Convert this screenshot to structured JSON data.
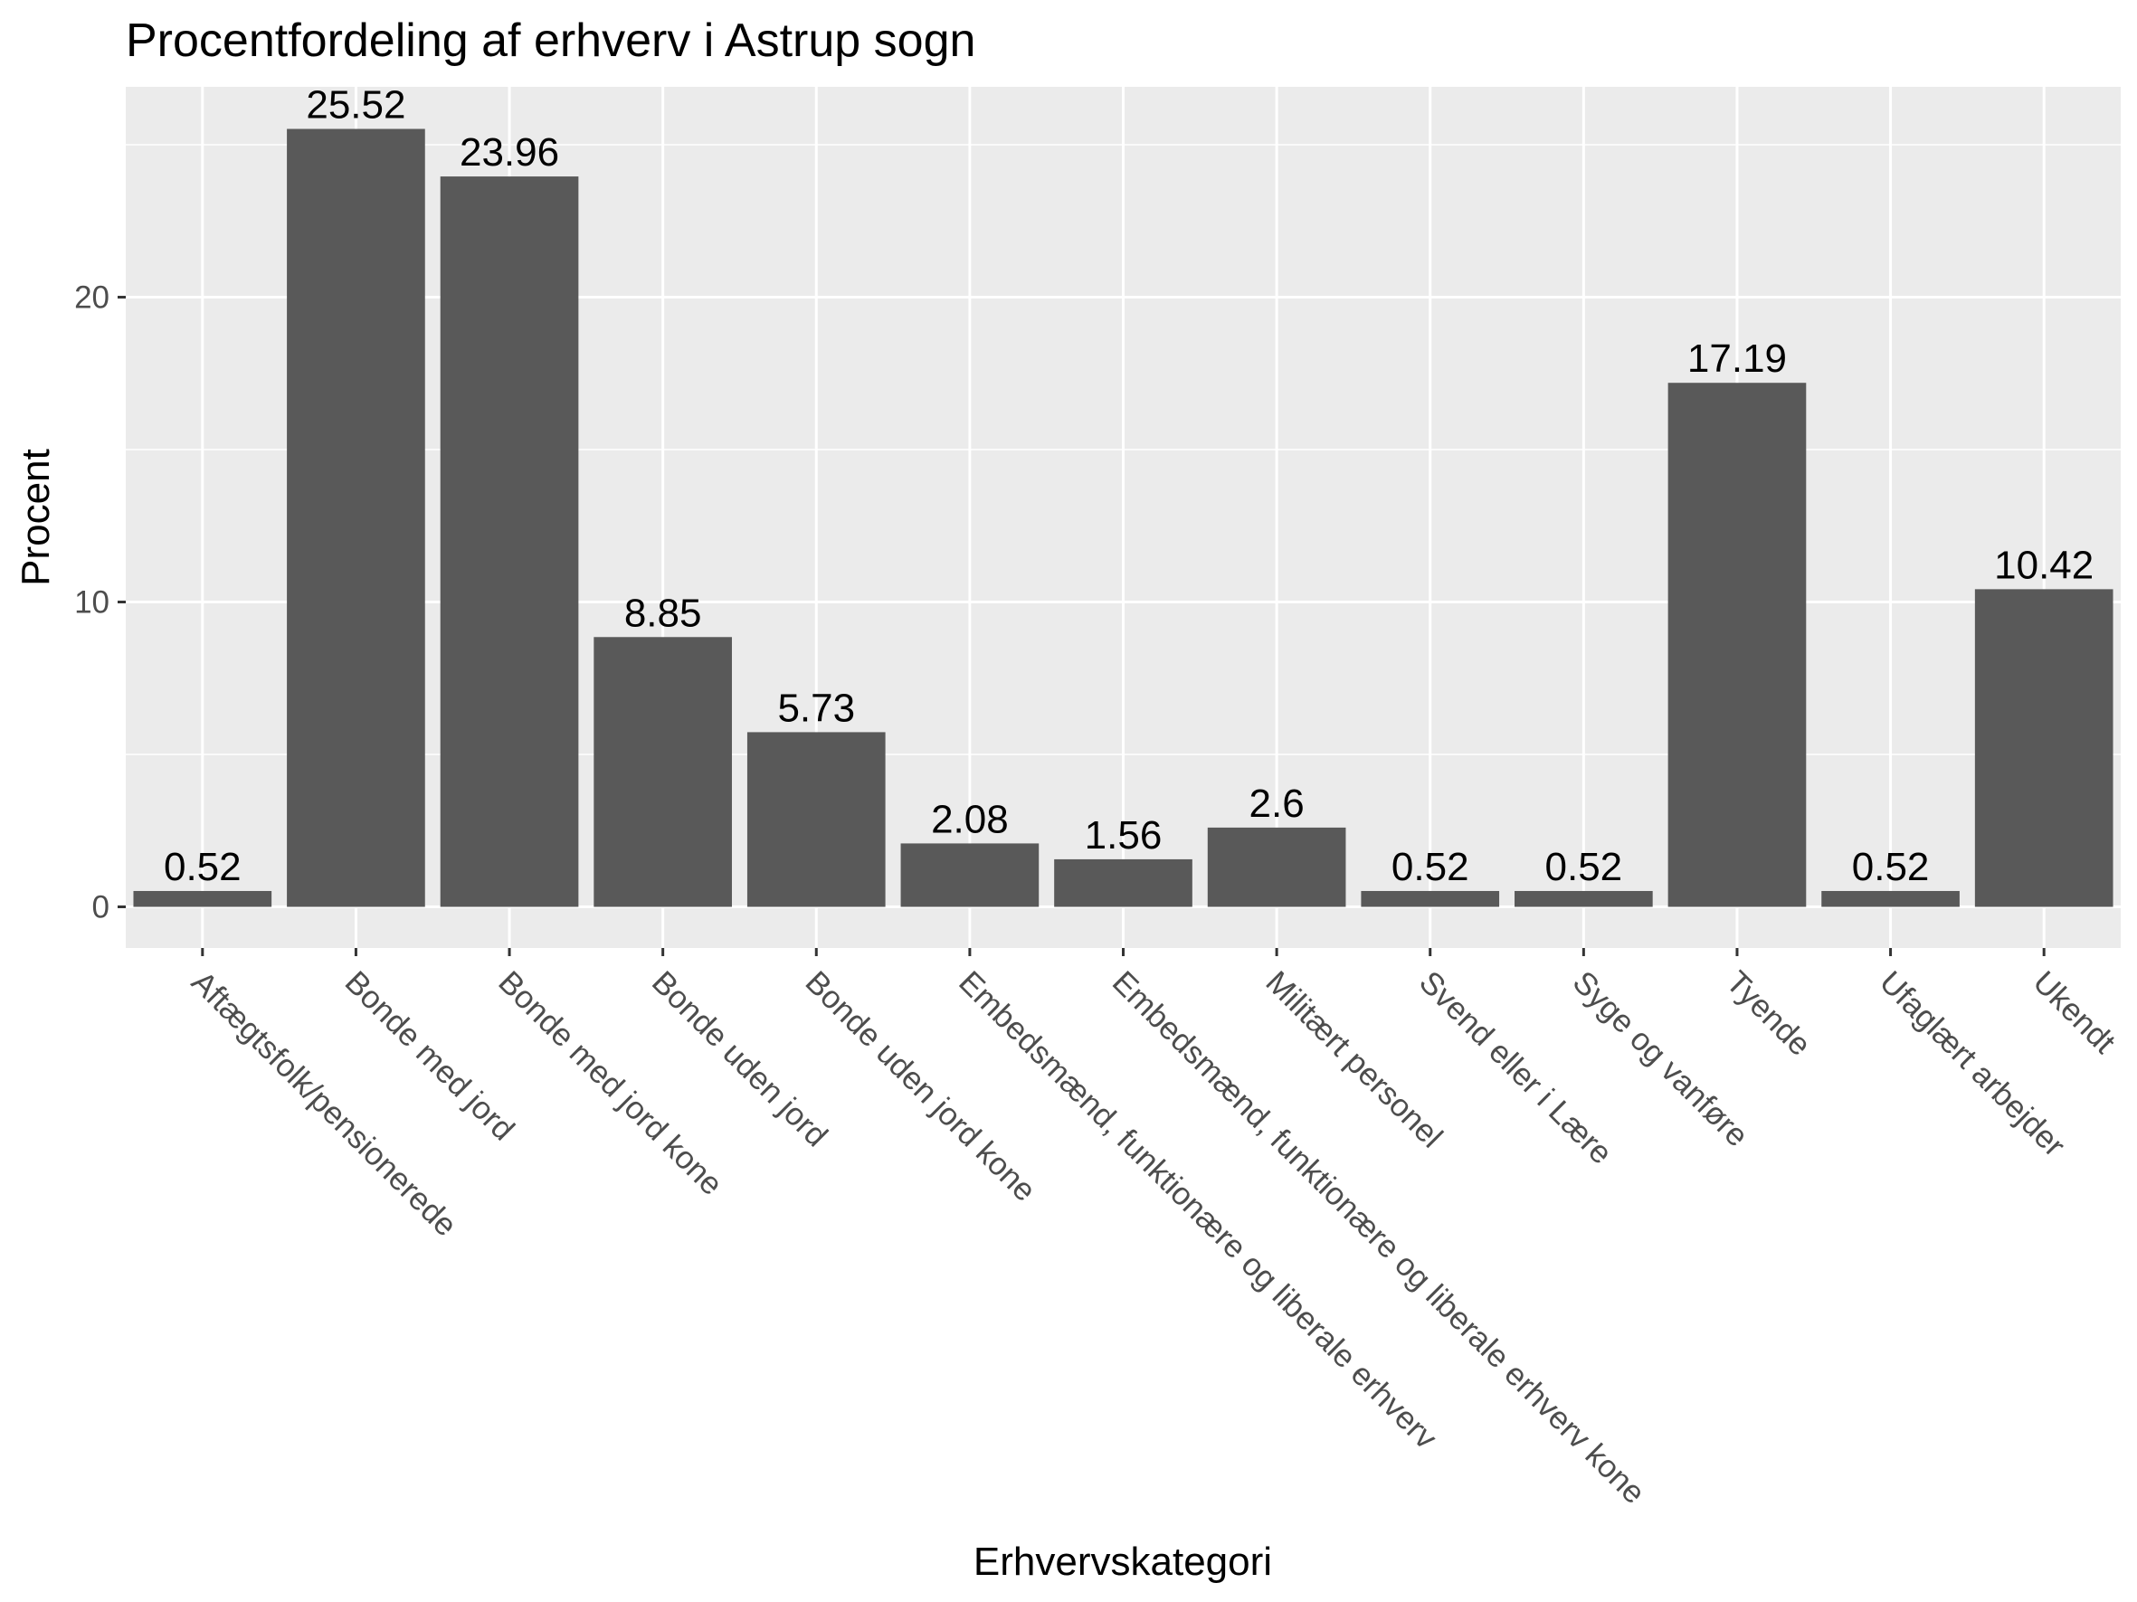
{
  "chart_data": {
    "type": "bar",
    "title": "Procentfordeling af erhverv i Astrup sogn",
    "xlabel": "Erhvervskategori",
    "ylabel": "Procent",
    "ylim": [
      -1.35,
      26.9
    ],
    "yticks": [
      0,
      10,
      20
    ],
    "grid": true,
    "categories": [
      "Aftægtsfolk/pensionerede",
      "Bonde med jord",
      "Bonde med jord kone",
      "Bonde uden jord",
      "Bonde uden jord kone",
      "Embedsmænd, funktionære og liberale erhverv",
      "Embedsmænd, funktionære og liberale erhverv kone",
      "Militært personel",
      "Svend eller i Lære",
      "Syge og vanføre",
      "Tyende",
      "Ufaglært arbejder",
      "Ukendt"
    ],
    "values": [
      0.52,
      25.52,
      23.96,
      8.85,
      5.73,
      2.08,
      1.56,
      2.6,
      0.52,
      0.52,
      17.19,
      0.52,
      10.42
    ],
    "value_labels": [
      "0.52",
      "25.52",
      "23.96",
      "8.85",
      "5.73",
      "2.08",
      "1.56",
      "2.6",
      "0.52",
      "0.52",
      "17.19",
      "0.52",
      "10.42"
    ],
    "colors": {
      "bar": "#595959",
      "panel": "#ebebeb",
      "grid_major": "#ffffff",
      "tick_text": "#4d4d4d"
    }
  }
}
